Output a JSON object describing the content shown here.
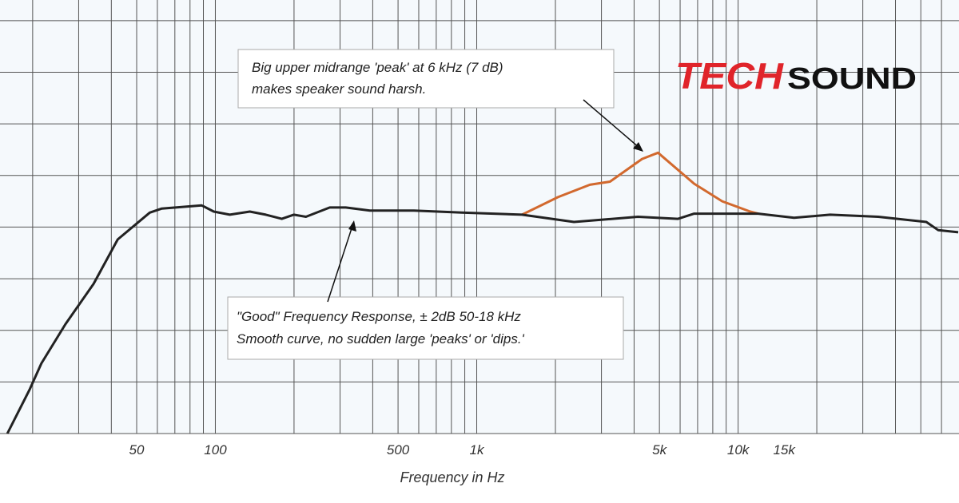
{
  "chart_data": {
    "type": "line",
    "x_label": "Frequency in Hz",
    "xscale": "log",
    "xlim": [
      15,
      70000
    ],
    "ylim": [
      -20,
      22
    ],
    "xticks": [
      50,
      100,
      500,
      {
        "value": 1000,
        "label": "1k"
      },
      {
        "value": 5000,
        "label": "5k"
      },
      {
        "value": 10000,
        "label": "10k"
      },
      {
        "value": 15000,
        "label": "15k"
      }
    ],
    "xgrid": [
      20,
      30,
      40,
      50,
      60,
      70,
      80,
      90,
      100,
      200,
      300,
      400,
      500,
      600,
      700,
      800,
      900,
      1000,
      2000,
      3000,
      4000,
      5000,
      6000,
      7000,
      8000,
      9000,
      10000,
      20000,
      30000,
      40000,
      50000,
      60000
    ],
    "ygrid": [
      -20,
      -15,
      -10,
      -5,
      0,
      5,
      10,
      15,
      20
    ],
    "series": [
      {
        "color": "#d2692e",
        "x": [
          1490,
          2045,
          2710,
          3235,
          4290,
          4940,
          6790,
          8690,
          11120,
          11940
        ],
        "values": [
          1.2,
          2.9,
          4.1,
          4.4,
          6.6,
          7.2,
          4.2,
          2.5,
          1.5,
          1.3
        ]
      },
      {
        "color": "#222222",
        "x": [
          16,
          19.5,
          21.6,
          26.7,
          34.2,
          42.3,
          56.1,
          62.4,
          88.7,
          98.6,
          113.5,
          135.5,
          156,
          179.5,
          199.5,
          222,
          274,
          315.5,
          390,
          575,
          877,
          1490,
          2355,
          4140,
          5890,
          6790,
          11940,
          16370,
          22490,
          34360,
          52480,
          58340,
          69500
        ],
        "values": [
          -20,
          -15.7,
          -13.2,
          -9.4,
          -5.5,
          -1.2,
          1.4,
          1.8,
          2.1,
          1.5,
          1.2,
          1.5,
          1.2,
          0.8,
          1.2,
          1.0,
          1.9,
          1.9,
          1.6,
          1.6,
          1.4,
          1.2,
          0.5,
          1.0,
          0.8,
          1.3,
          1.3,
          0.9,
          1.2,
          1.0,
          0.5,
          -0.3,
          -0.5
        ]
      }
    ],
    "annotations": [
      [
        "Big upper midrange 'peak' at 6 kHz (7 dB)",
        "makes  speaker sound harsh."
      ],
      [
        "\"Good\" Frequency Response, ± 2dB 50-18 kHz",
        "Smooth curve, no sudden large 'peaks' or 'dips.'"
      ]
    ]
  },
  "logo": {
    "part1": "TECH",
    "part2": "SOUND"
  }
}
